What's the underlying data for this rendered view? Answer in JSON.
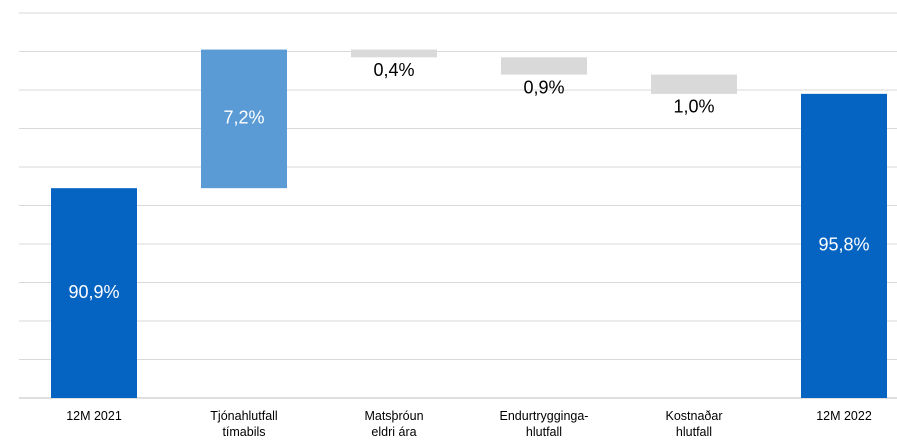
{
  "chart_data": {
    "type": "waterfall",
    "categories": [
      "12M 2021",
      "Tjónahlutfall\ntímabils",
      "Matsþróun\neldri ára",
      "Endurtrygginga-\nhlutfall",
      "Kostnaðar\nhlutfall",
      "12M 2022"
    ],
    "measure": [
      "absolute",
      "relative",
      "relative",
      "relative",
      "relative",
      "absolute"
    ],
    "values": [
      90.9,
      7.2,
      -0.4,
      -0.9,
      -1.0,
      95.8
    ],
    "value_labels": [
      "90,9%",
      "7,2%",
      "0,4%",
      "0,9%",
      "1,0%",
      "95,8%"
    ],
    "colors": {
      "absolute": "#0563c1",
      "increase": "#5b9bd5",
      "decrease": "#d9d9d9"
    },
    "ylim": [
      80,
      100
    ],
    "yticks": [
      80,
      82,
      84,
      86,
      88,
      90,
      92,
      94,
      96,
      98,
      100
    ],
    "grid": true
  }
}
